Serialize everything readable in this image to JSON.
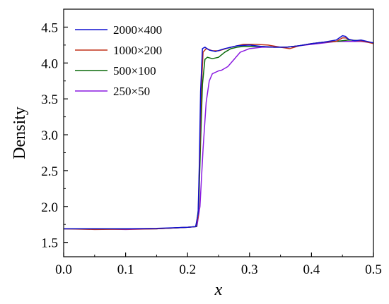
{
  "chart_data": {
    "type": "line",
    "xlabel": "x",
    "ylabel": "Density",
    "xlim": [
      0.0,
      0.5
    ],
    "ylim": [
      1.3,
      4.75
    ],
    "xticks": [
      0.0,
      0.1,
      0.2,
      0.3,
      0.4,
      0.5
    ],
    "xtick_labels": [
      "0.0",
      "0.1",
      "0.2",
      "0.3",
      "0.4",
      "0.5"
    ],
    "yticks": [
      1.5,
      2.0,
      2.5,
      3.0,
      3.5,
      4.0,
      4.5
    ],
    "ytick_labels": [
      "1.5",
      "2.0",
      "2.5",
      "3.0",
      "3.5",
      "4.0",
      "4.5"
    ],
    "grid": false,
    "legend_position": "top-left",
    "series": [
      {
        "name": "2000×400",
        "color": "#1010d0",
        "x": [
          0.0,
          0.05,
          0.1,
          0.15,
          0.2,
          0.213,
          0.217,
          0.219,
          0.221,
          0.224,
          0.228,
          0.235,
          0.245,
          0.26,
          0.28,
          0.3,
          0.32,
          0.34,
          0.36,
          0.38,
          0.4,
          0.42,
          0.44,
          0.45,
          0.455,
          0.46,
          0.47,
          0.48,
          0.5
        ],
        "y": [
          1.69,
          1.69,
          1.69,
          1.695,
          1.71,
          1.72,
          1.9,
          2.6,
          3.6,
          4.2,
          4.22,
          4.18,
          4.16,
          4.2,
          4.24,
          4.25,
          4.23,
          4.22,
          4.22,
          4.24,
          4.27,
          4.29,
          4.32,
          4.38,
          4.37,
          4.33,
          4.31,
          4.32,
          4.28
        ]
      },
      {
        "name": "1000×200",
        "color": "#c03018",
        "x": [
          0.0,
          0.05,
          0.1,
          0.15,
          0.2,
          0.213,
          0.217,
          0.219,
          0.222,
          0.225,
          0.23,
          0.24,
          0.25,
          0.27,
          0.29,
          0.31,
          0.33,
          0.35,
          0.365,
          0.38,
          0.4,
          0.42,
          0.44,
          0.45,
          0.455,
          0.46,
          0.47,
          0.48,
          0.5
        ],
        "y": [
          1.69,
          1.68,
          1.685,
          1.69,
          1.71,
          1.72,
          1.85,
          2.5,
          3.6,
          4.15,
          4.2,
          4.17,
          4.17,
          4.22,
          4.26,
          4.26,
          4.25,
          4.22,
          4.2,
          4.24,
          4.27,
          4.29,
          4.3,
          4.35,
          4.35,
          4.33,
          4.31,
          4.31,
          4.27
        ]
      },
      {
        "name": "500×100",
        "color": "#0a6a0a",
        "x": [
          0.0,
          0.05,
          0.1,
          0.15,
          0.2,
          0.214,
          0.218,
          0.221,
          0.224,
          0.228,
          0.232,
          0.24,
          0.25,
          0.26,
          0.27,
          0.28,
          0.29,
          0.3,
          0.32,
          0.34,
          0.36,
          0.38,
          0.4,
          0.42,
          0.44,
          0.46,
          0.48,
          0.5
        ],
        "y": [
          1.69,
          1.69,
          1.69,
          1.69,
          1.71,
          1.72,
          2.0,
          2.9,
          3.7,
          4.05,
          4.08,
          4.06,
          4.08,
          4.15,
          4.2,
          4.22,
          4.23,
          4.23,
          4.23,
          4.22,
          4.22,
          4.24,
          4.27,
          4.29,
          4.3,
          4.32,
          4.31,
          4.28
        ]
      },
      {
        "name": "250×50",
        "color": "#8a1ae0",
        "x": [
          0.0,
          0.05,
          0.1,
          0.15,
          0.2,
          0.215,
          0.22,
          0.225,
          0.23,
          0.235,
          0.24,
          0.25,
          0.255,
          0.265,
          0.275,
          0.285,
          0.3,
          0.32,
          0.34,
          0.36,
          0.38,
          0.4,
          0.42,
          0.44,
          0.46,
          0.48,
          0.5
        ],
        "y": [
          1.69,
          1.69,
          1.68,
          1.69,
          1.71,
          1.72,
          2.0,
          2.8,
          3.45,
          3.75,
          3.85,
          3.89,
          3.9,
          3.95,
          4.05,
          4.15,
          4.2,
          4.22,
          4.22,
          4.22,
          4.24,
          4.26,
          4.28,
          4.3,
          4.3,
          4.3,
          4.28
        ]
      }
    ]
  }
}
